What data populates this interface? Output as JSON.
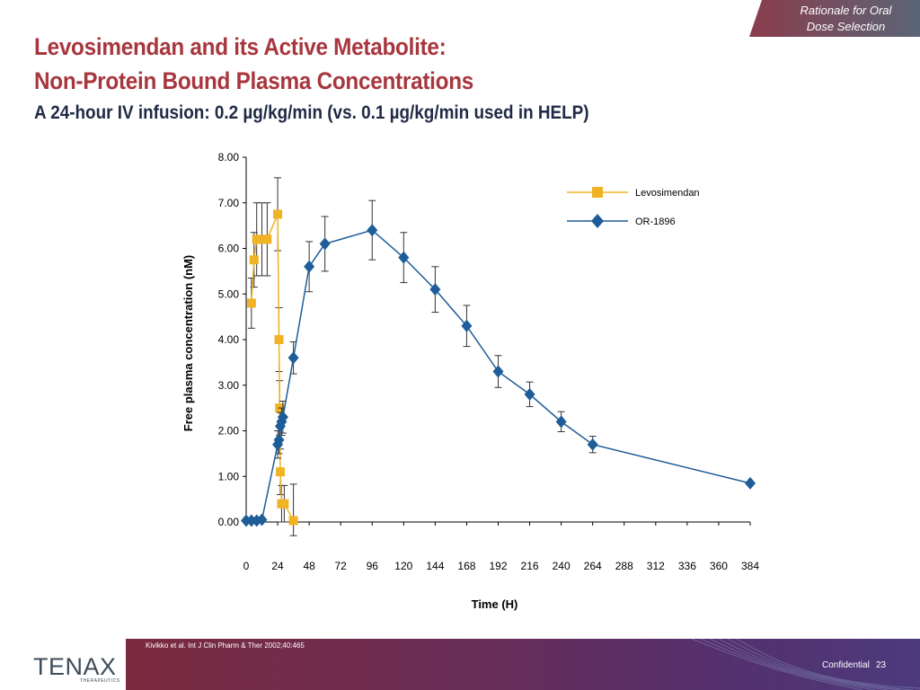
{
  "header_tag": {
    "line1": "Rationale for Oral",
    "line2": "Dose Selection"
  },
  "title": {
    "line1": "Levosimendan and its Active Metabolite:",
    "line2": "Non-Protein Bound Plasma Concentrations"
  },
  "subtitle": "A 24-hour IV infusion: 0.2 µg/kg/min (vs. 0.1 µg/kg/min used in HELP)",
  "footer": {
    "citation": "Kivikko et al. Int J Clin Pharm & Ther 2002;40:465",
    "confidential": "Confidential",
    "page_number": "23",
    "logo_text": "TENAX",
    "logo_sub": "THERAPEUTICS"
  },
  "colors": {
    "title": "#a8363e",
    "levosimendan": "#f0b323",
    "or1896": "#1f5d99",
    "axis": "#000000"
  },
  "chart_data": {
    "type": "line",
    "xlabel": "Time (H)",
    "ylabel": "Free plasma concentration (nM)",
    "xlim": [
      0,
      384
    ],
    "ylim": [
      0,
      8
    ],
    "x_ticks": [
      0,
      24,
      48,
      72,
      96,
      120,
      144,
      168,
      192,
      216,
      240,
      264,
      288,
      312,
      336,
      360,
      384
    ],
    "y_ticks": [
      "0.00",
      "1.00",
      "2.00",
      "3.00",
      "4.00",
      "5.00",
      "6.00",
      "7.00",
      "8.00"
    ],
    "grid": false,
    "legend_position": "top-right",
    "series": [
      {
        "name": "Levosimendan",
        "marker": "square",
        "color": "#f0b323",
        "x": [
          4,
          6,
          8,
          12,
          16,
          24,
          25,
          25.5,
          26,
          27,
          29,
          36
        ],
        "y": [
          4.8,
          5.75,
          6.2,
          6.2,
          6.2,
          6.75,
          4.0,
          2.5,
          1.1,
          0.4,
          0.4,
          0.03
        ],
        "error": [
          0.55,
          0.6,
          0.8,
          0.8,
          0.8,
          0.8,
          0.7,
          0.6,
          0.5,
          0.4,
          0.4,
          0.8
        ]
      },
      {
        "name": "OR-1896",
        "marker": "diamond",
        "color": "#1f5d99",
        "x": [
          0,
          4,
          8,
          12,
          24,
          25,
          26,
          27,
          28,
          36,
          48,
          60,
          96,
          120,
          144,
          168,
          192,
          216,
          240,
          264,
          384
        ],
        "y": [
          0.03,
          0.03,
          0.03,
          0.05,
          1.7,
          1.8,
          2.1,
          2.2,
          2.3,
          3.6,
          5.6,
          6.1,
          6.4,
          5.8,
          5.1,
          4.3,
          3.3,
          2.8,
          2.2,
          1.7,
          0.85
        ],
        "error": [
          0,
          0,
          0,
          0,
          0.3,
          0.3,
          0.3,
          0.3,
          0.35,
          0.35,
          0.55,
          0.6,
          0.65,
          0.55,
          0.5,
          0.45,
          0.35,
          0.27,
          0.22,
          0.18,
          0
        ]
      }
    ]
  }
}
